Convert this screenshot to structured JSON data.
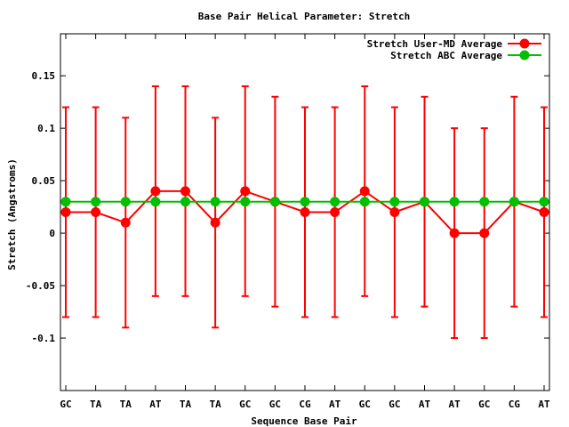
{
  "chart_data": {
    "type": "line",
    "title": "Base Pair Helical Parameter: Stretch",
    "xlabel": "Sequence Base Pair",
    "ylabel": "Stretch (Angstroms)",
    "ylim": [
      -0.15,
      0.19
    ],
    "yticks": [
      -0.1,
      -0.05,
      0,
      0.05,
      0.1,
      0.15
    ],
    "ytick_labels": [
      "-0.1",
      "-0.05",
      "0",
      "0.05",
      "0.1",
      "0.15"
    ],
    "categories": [
      "GC",
      "TA",
      "TA",
      "AT",
      "TA",
      "TA",
      "GC",
      "GC",
      "CG",
      "AT",
      "GC",
      "GC",
      "AT",
      "AT",
      "GC",
      "CG",
      "AT"
    ],
    "legend_position": "top-right",
    "grid": false,
    "series": [
      {
        "name": "Stretch User-MD Average",
        "color": "#ff0000",
        "values": [
          0.02,
          0.02,
          0.01,
          0.04,
          0.04,
          0.01,
          0.04,
          0.03,
          0.02,
          0.02,
          0.04,
          0.02,
          0.03,
          0.0,
          0.0,
          0.03,
          0.02
        ],
        "error_low": [
          -0.08,
          -0.08,
          -0.09,
          -0.06,
          -0.06,
          -0.09,
          -0.06,
          -0.07,
          -0.08,
          -0.08,
          -0.06,
          -0.08,
          -0.07,
          -0.1,
          -0.1,
          -0.07,
          -0.08
        ],
        "error_high": [
          0.12,
          0.12,
          0.11,
          0.14,
          0.14,
          0.11,
          0.14,
          0.13,
          0.12,
          0.12,
          0.14,
          0.12,
          0.13,
          0.1,
          0.1,
          0.13,
          0.12
        ]
      },
      {
        "name": "Stretch ABC Average",
        "color": "#00c000",
        "values": [
          0.03,
          0.03,
          0.03,
          0.03,
          0.03,
          0.03,
          0.03,
          0.03,
          0.03,
          0.03,
          0.03,
          0.03,
          0.03,
          0.03,
          0.03,
          0.03,
          0.03
        ]
      }
    ]
  }
}
